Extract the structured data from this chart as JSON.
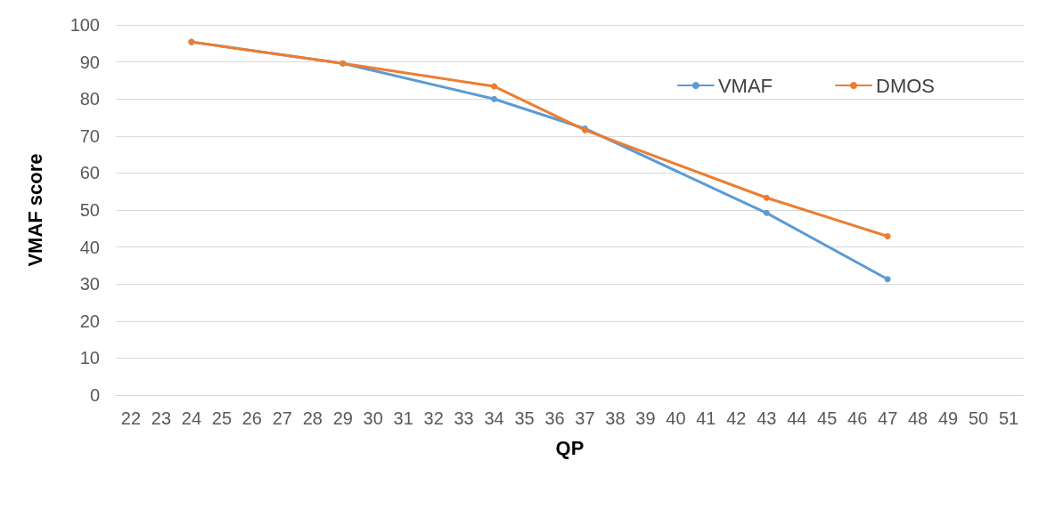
{
  "chart_data": {
    "type": "line",
    "xlabel": "QP",
    "ylabel": "VMAF score",
    "xlim": [
      21.5,
      51.5
    ],
    "xticks": [
      22,
      23,
      24,
      25,
      26,
      27,
      28,
      29,
      30,
      31,
      32,
      33,
      34,
      35,
      36,
      37,
      38,
      39,
      40,
      41,
      42,
      43,
      44,
      45,
      46,
      47,
      48,
      49,
      50,
      51
    ],
    "ylim": [
      0,
      100
    ],
    "yticks": [
      0,
      10,
      20,
      30,
      40,
      50,
      60,
      70,
      80,
      90,
      100
    ],
    "x": [
      24,
      29,
      34,
      37,
      43,
      47
    ],
    "series": [
      {
        "name": "VMAF",
        "color": "#5b9bd5",
        "values": [
          95.4,
          89.6,
          80.0,
          72.0,
          49.2,
          31.3
        ]
      },
      {
        "name": "DMOS",
        "color": "#ed7d31",
        "values": [
          95.4,
          89.6,
          83.4,
          71.6,
          53.3,
          42.9
        ]
      }
    ],
    "grid": "y",
    "legend": "top right",
    "marker": "circle",
    "line_style": "solid"
  }
}
